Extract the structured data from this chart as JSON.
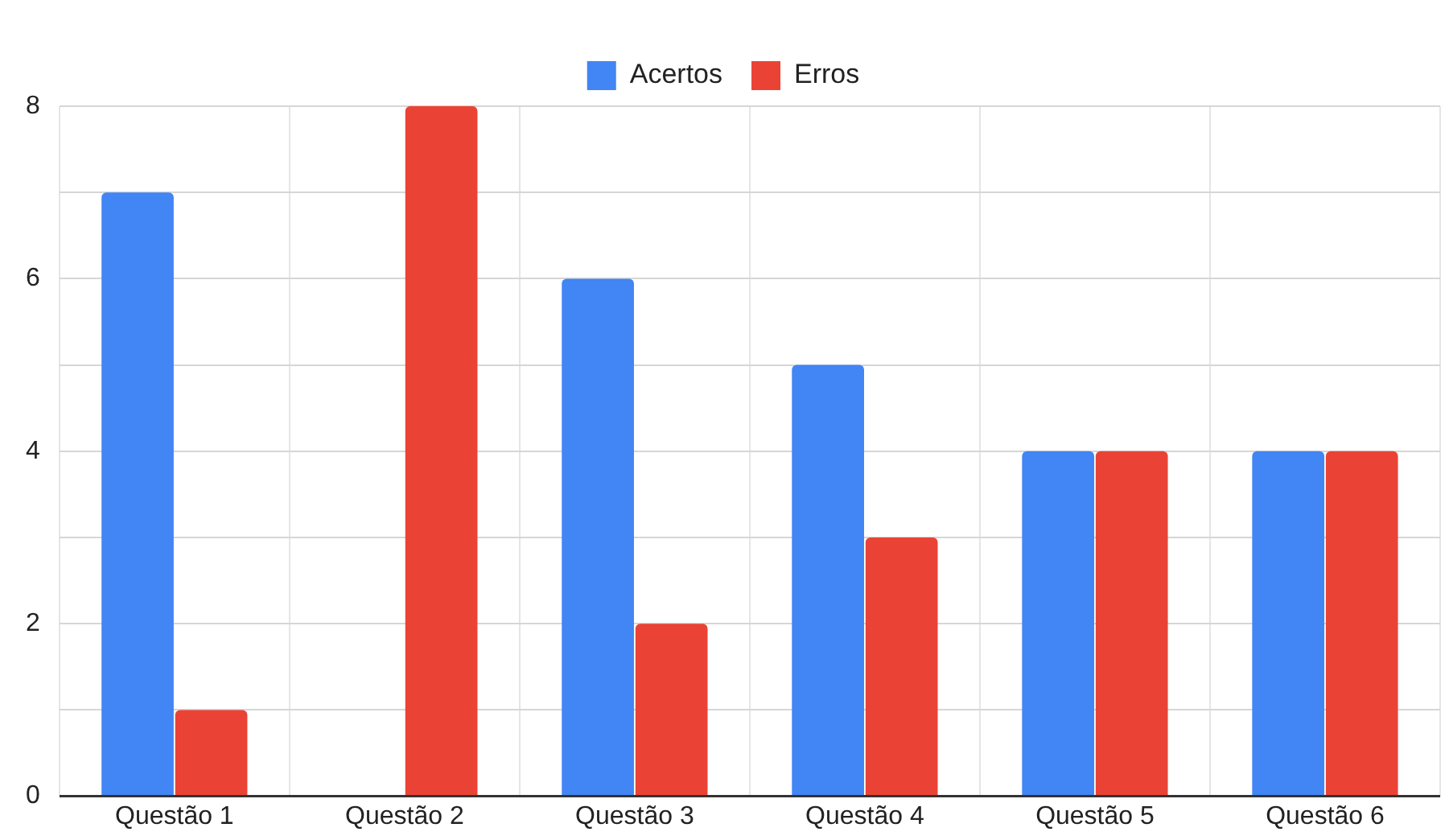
{
  "chart_data": {
    "type": "bar",
    "categories": [
      "Questão 1",
      "Questão 2",
      "Questão 3",
      "Questão 4",
      "Questão 5",
      "Questão 6"
    ],
    "series": [
      {
        "name": "Acertos",
        "color": "#4285f4",
        "values": [
          7,
          0,
          6,
          5,
          4,
          4
        ]
      },
      {
        "name": "Erros",
        "color": "#ea4335",
        "values": [
          1,
          8,
          2,
          3,
          4,
          4
        ]
      }
    ],
    "ylim": [
      0,
      8
    ],
    "yticks": [
      0,
      {
        "value": 1,
        "label": null
      },
      2,
      {
        "value": 3,
        "label": null
      },
      4,
      {
        "value": 5,
        "label": null
      },
      6,
      {
        "value": 7,
        "label": null
      },
      8
    ],
    "grid": true,
    "legend": "top"
  }
}
